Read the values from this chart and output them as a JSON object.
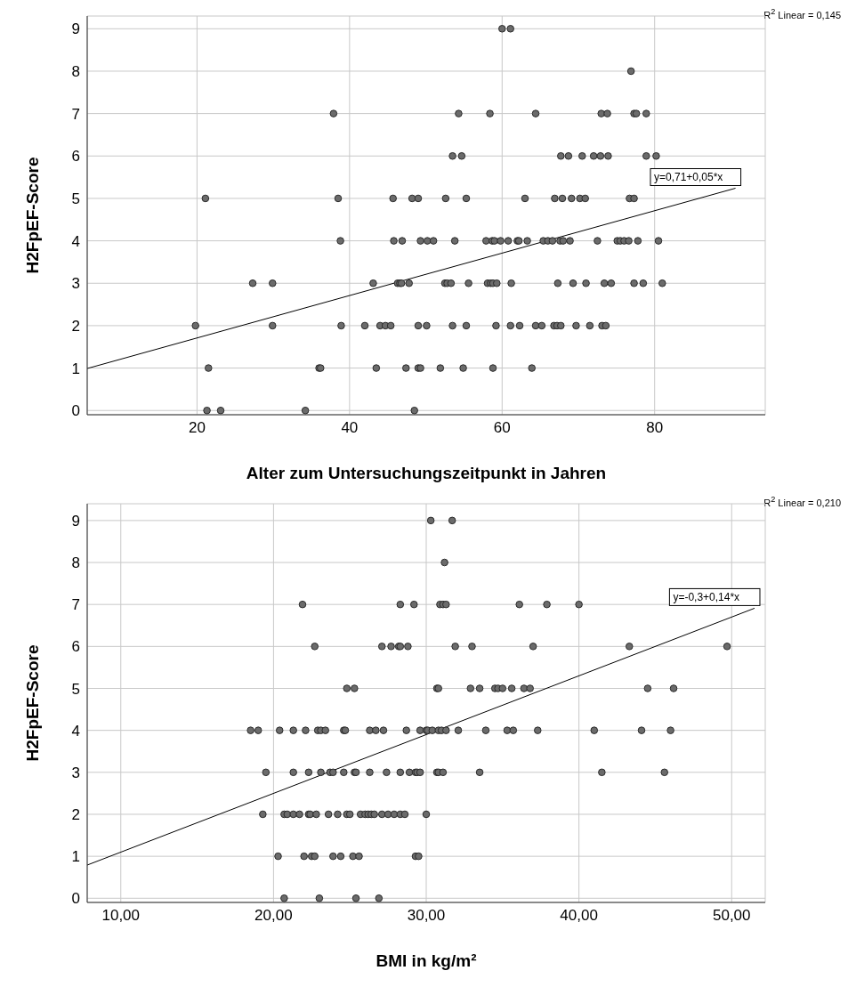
{
  "chart_data": [
    {
      "type": "scatter",
      "xlabel": "Alter zum Untersuchungszeitpunkt in Jahren",
      "ylabel": "H2FpEF-Score",
      "xlim": [
        5.6,
        94.5
      ],
      "xticks": [
        20,
        40,
        60,
        80
      ],
      "ylim": [
        -0.1,
        9.3
      ],
      "yticks": [
        0,
        1,
        2,
        3,
        4,
        5,
        6,
        7,
        8,
        9
      ],
      "grid": true,
      "annotations": [
        "R$^{2}$ Linear = 0,145",
        {
          "text": "y=0,71+0,05*x",
          "x": 90.6,
          "y": 5.24
        }
      ],
      "series": [
        {
          "marker": "circle",
          "color": "#6b6b6b",
          "x": [
            60.0,
            61.1,
            76.9,
            37.9,
            54.3,
            58.4,
            64.4,
            73.0,
            73.8,
            77.3,
            77.6,
            78.9,
            53.5,
            54.7,
            67.7,
            68.7,
            70.5,
            72.0,
            72.9,
            73.9,
            78.9,
            80.2,
            21.1,
            38.5,
            45.7,
            48.2,
            49.0,
            52.6,
            55.3,
            63.0,
            66.9,
            67.9,
            69.1,
            70.2,
            70.9,
            76.7,
            77.3,
            38.8,
            45.8,
            46.9,
            49.3,
            50.2,
            51.0,
            53.8,
            57.9,
            58.7,
            59.0,
            59.8,
            60.8,
            62.0,
            62.2,
            63.3,
            65.4,
            66.0,
            66.6,
            67.6,
            68.0,
            68.9,
            72.5,
            75.1,
            75.5,
            76.0,
            76.6,
            77.8,
            80.5,
            27.3,
            29.9,
            43.1,
            46.3,
            46.6,
            46.8,
            47.8,
            52.5,
            52.8,
            53.3,
            55.6,
            58.1,
            58.5,
            58.8,
            59.3,
            61.2,
            67.3,
            69.3,
            71.0,
            73.4,
            74.3,
            77.3,
            78.5,
            81.0,
            19.8,
            29.9,
            38.9,
            42.0,
            44.0,
            44.7,
            45.4,
            49.0,
            50.1,
            53.5,
            55.3,
            59.2,
            61.1,
            62.3,
            64.4,
            65.2,
            66.8,
            67.2,
            67.7,
            69.7,
            71.5,
            73.1,
            73.6,
            21.5,
            36.0,
            36.2,
            43.5,
            47.4,
            49.0,
            49.3,
            51.9,
            54.9,
            58.8,
            63.9,
            21.3,
            23.1,
            34.2,
            48.5
          ],
          "values": [
            9,
            9,
            8,
            7,
            7,
            7,
            7,
            7,
            7,
            7,
            7,
            7,
            6,
            6,
            6,
            6,
            6,
            6,
            6,
            6,
            6,
            6,
            5,
            5,
            5,
            5,
            5,
            5,
            5,
            5,
            5,
            5,
            5,
            5,
            5,
            5,
            5,
            4,
            4,
            4,
            4,
            4,
            4,
            4,
            4,
            4,
            4,
            4,
            4,
            4,
            4,
            4,
            4,
            4,
            4,
            4,
            4,
            4,
            4,
            4,
            4,
            4,
            4,
            4,
            4,
            3,
            3,
            3,
            3,
            3,
            3,
            3,
            3,
            3,
            3,
            3,
            3,
            3,
            3,
            3,
            3,
            3,
            3,
            3,
            3,
            3,
            3,
            3,
            3,
            2,
            2,
            2,
            2,
            2,
            2,
            2,
            2,
            2,
            2,
            2,
            2,
            2,
            2,
            2,
            2,
            2,
            2,
            2,
            2,
            2,
            2,
            2,
            1,
            1,
            1,
            1,
            1,
            1,
            1,
            1,
            1,
            1,
            1,
            0,
            0,
            0,
            0
          ]
        },
        {
          "type": "line",
          "marker": "none",
          "color": "#000000",
          "x": [
            5.6,
            90.6
          ],
          "values": [
            0.99,
            5.24
          ]
        }
      ]
    },
    {
      "type": "scatter",
      "xlabel": "BMI  in kg/m²",
      "ylabel": "H2FpEF-Score",
      "xlim": [
        7.8,
        52.2
      ],
      "xticks": [
        {
          "value": 10,
          "label": "10,00"
        },
        {
          "value": 20,
          "label": "20,00"
        },
        {
          "value": 30,
          "label": "30,00"
        },
        {
          "value": 40,
          "label": "40,00"
        },
        {
          "value": 50,
          "label": "50,00"
        }
      ],
      "ylim": [
        -0.1,
        9.4
      ],
      "yticks": [
        0,
        1,
        2,
        3,
        4,
        5,
        6,
        7,
        8,
        9
      ],
      "grid": true,
      "annotations": [
        "R$^{2}$ Linear = 0,210",
        {
          "text": "y=-0,3+0,14*x",
          "x": 51.5,
          "y": 6.91
        }
      ],
      "series": [
        {
          "marker": "circle",
          "color": "#6b6b6b",
          "x": [
            30.3,
            31.7,
            31.2,
            21.9,
            28.3,
            29.2,
            30.9,
            31.1,
            31.3,
            36.1,
            37.9,
            40.0,
            22.7,
            27.1,
            27.7,
            28.2,
            28.3,
            28.8,
            31.9,
            33.0,
            37.0,
            43.3,
            49.7,
            24.8,
            25.3,
            30.7,
            30.8,
            32.9,
            33.5,
            34.5,
            34.7,
            35.0,
            35.6,
            36.4,
            36.8,
            44.5,
            46.2,
            18.5,
            19.0,
            20.4,
            21.3,
            22.1,
            22.9,
            23.1,
            23.4,
            24.6,
            24.7,
            26.3,
            26.7,
            27.2,
            28.7,
            29.6,
            30.0,
            30.1,
            30.4,
            30.8,
            31.0,
            31.3,
            32.1,
            33.9,
            35.3,
            35.7,
            37.3,
            41.0,
            44.1,
            46.0,
            19.5,
            21.3,
            22.3,
            23.1,
            23.7,
            23.9,
            24.6,
            25.3,
            25.4,
            26.3,
            27.4,
            28.3,
            28.9,
            29.3,
            29.4,
            29.6,
            30.7,
            30.8,
            31.1,
            33.5,
            41.5,
            45.6,
            19.3,
            20.7,
            20.9,
            21.3,
            21.7,
            22.3,
            22.4,
            22.8,
            23.6,
            24.2,
            24.8,
            25.0,
            25.7,
            26.0,
            26.2,
            26.4,
            26.6,
            27.1,
            27.5,
            27.9,
            28.3,
            28.6,
            30.0,
            20.3,
            22.0,
            22.5,
            22.7,
            23.9,
            24.4,
            25.2,
            25.6,
            29.3,
            29.5,
            20.7,
            23.0,
            25.4,
            26.9
          ],
          "values": [
            9,
            9,
            8,
            7,
            7,
            7,
            7,
            7,
            7,
            7,
            7,
            7,
            6,
            6,
            6,
            6,
            6,
            6,
            6,
            6,
            6,
            6,
            6,
            5,
            5,
            5,
            5,
            5,
            5,
            5,
            5,
            5,
            5,
            5,
            5,
            5,
            5,
            4,
            4,
            4,
            4,
            4,
            4,
            4,
            4,
            4,
            4,
            4,
            4,
            4,
            4,
            4,
            4,
            4,
            4,
            4,
            4,
            4,
            4,
            4,
            4,
            4,
            4,
            4,
            4,
            4,
            3,
            3,
            3,
            3,
            3,
            3,
            3,
            3,
            3,
            3,
            3,
            3,
            3,
            3,
            3,
            3,
            3,
            3,
            3,
            3,
            3,
            3,
            2,
            2,
            2,
            2,
            2,
            2,
            2,
            2,
            2,
            2,
            2,
            2,
            2,
            2,
            2,
            2,
            2,
            2,
            2,
            2,
            2,
            2,
            2,
            1,
            1,
            1,
            1,
            1,
            1,
            1,
            1,
            1,
            1,
            0,
            0,
            0,
            0
          ]
        },
        {
          "type": "line",
          "marker": "none",
          "color": "#000000",
          "x": [
            7.8,
            51.5
          ],
          "values": [
            0.79,
            6.91
          ]
        }
      ]
    }
  ]
}
